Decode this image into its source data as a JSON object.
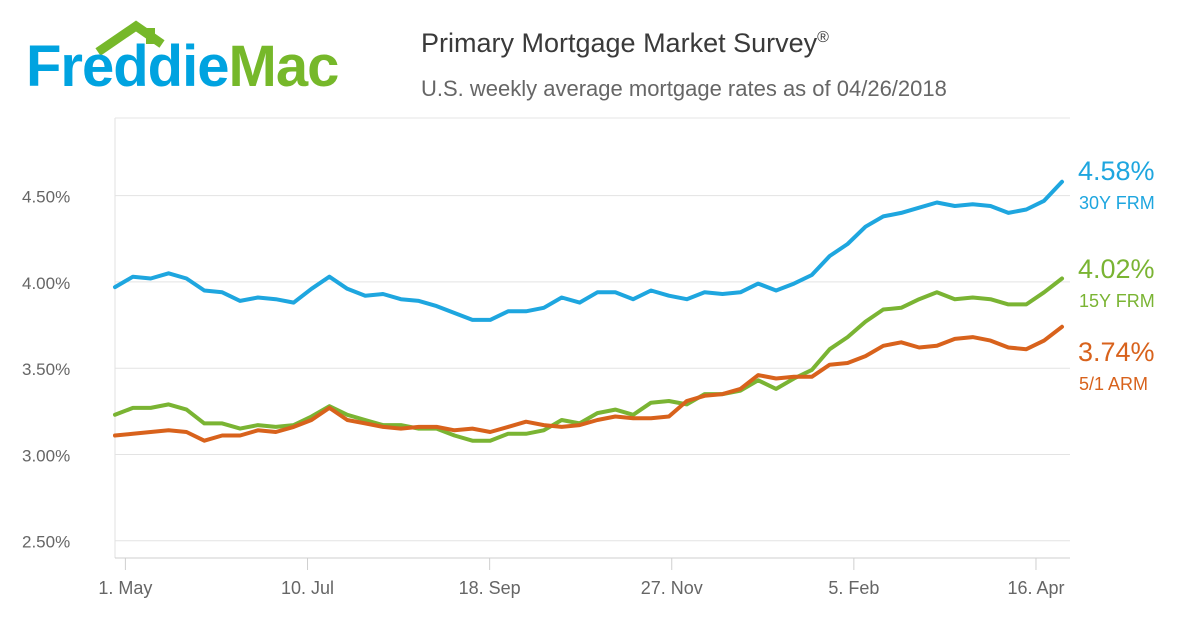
{
  "brand": {
    "name_part1": "Freddie",
    "name_part2": "Mac",
    "colors": {
      "blue": "#00a3e0",
      "green": "#76b82a"
    }
  },
  "header": {
    "title": "Primary Mortgage Market Survey",
    "title_mark": "®",
    "subtitle": "U.S. weekly average mortgage rates as of 04/26/2018"
  },
  "chart_data": {
    "type": "line",
    "title": "Primary Mortgage Market Survey®",
    "subtitle": "U.S. weekly average mortgage rates as of 04/26/2018",
    "x_tick_labels": [
      "1. May",
      "10. Jul",
      "18. Sep",
      "27. Nov",
      "5. Feb",
      "16. Apr"
    ],
    "y_tick_labels": [
      "2.50%",
      "3.00%",
      "3.50%",
      "4.00%",
      "4.50%"
    ],
    "y_ticks": [
      2.5,
      3.0,
      3.5,
      4.0,
      4.5
    ],
    "ylim": [
      2.4,
      4.95
    ],
    "grid": true,
    "legend_position": "right, at line ends",
    "x_dates_first": "2017-04-27",
    "x_dates_last": "2018-04-26",
    "x_weekly": true,
    "series": [
      {
        "name": "30Y FRM",
        "color": "#1ea6df",
        "end_value_label": "4.58%",
        "values": [
          3.97,
          4.03,
          4.02,
          4.05,
          4.02,
          3.95,
          3.94,
          3.89,
          3.91,
          3.9,
          3.88,
          3.96,
          4.03,
          3.96,
          3.92,
          3.93,
          3.9,
          3.89,
          3.86,
          3.82,
          3.78,
          3.78,
          3.83,
          3.83,
          3.85,
          3.91,
          3.88,
          3.94,
          3.94,
          3.9,
          3.95,
          3.92,
          3.9,
          3.94,
          3.93,
          3.94,
          3.99,
          3.95,
          3.99,
          4.04,
          4.15,
          4.22,
          4.32,
          4.38,
          4.4,
          4.43,
          4.46,
          4.44,
          4.45,
          4.44,
          4.4,
          4.42,
          4.47,
          4.58
        ]
      },
      {
        "name": "15Y FRM",
        "color": "#7ab433",
        "end_value_label": "4.02%",
        "values": [
          3.23,
          3.27,
          3.27,
          3.29,
          3.26,
          3.18,
          3.18,
          3.15,
          3.17,
          3.16,
          3.17,
          3.22,
          3.28,
          3.23,
          3.2,
          3.17,
          3.17,
          3.15,
          3.15,
          3.11,
          3.08,
          3.08,
          3.12,
          3.12,
          3.14,
          3.2,
          3.18,
          3.24,
          3.26,
          3.23,
          3.3,
          3.31,
          3.29,
          3.35,
          3.35,
          3.37,
          3.43,
          3.38,
          3.44,
          3.49,
          3.61,
          3.68,
          3.77,
          3.84,
          3.85,
          3.9,
          3.94,
          3.9,
          3.91,
          3.9,
          3.87,
          3.87,
          3.94,
          4.02
        ]
      },
      {
        "name": "5/1 ARM",
        "color": "#d8621c",
        "end_value_label": "3.74%",
        "values": [
          3.11,
          3.12,
          3.13,
          3.14,
          3.13,
          3.08,
          3.11,
          3.11,
          3.14,
          3.13,
          3.16,
          3.2,
          3.27,
          3.2,
          3.18,
          3.16,
          3.15,
          3.16,
          3.16,
          3.14,
          3.15,
          3.13,
          3.16,
          3.19,
          3.17,
          3.16,
          3.17,
          3.2,
          3.22,
          3.21,
          3.21,
          3.22,
          3.31,
          3.34,
          3.35,
          3.38,
          3.46,
          3.44,
          3.45,
          3.45,
          3.52,
          3.53,
          3.57,
          3.63,
          3.65,
          3.62,
          3.63,
          3.67,
          3.68,
          3.66,
          3.62,
          3.61,
          3.66,
          3.74
        ]
      }
    ]
  }
}
